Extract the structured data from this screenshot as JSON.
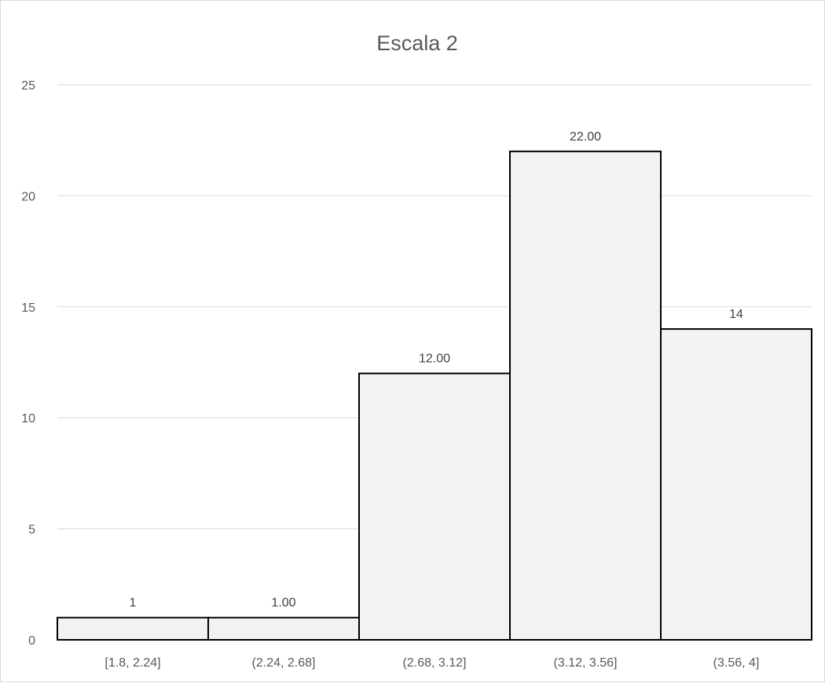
{
  "chart_data": {
    "type": "bar",
    "title": "Escala 2",
    "categories": [
      "[1.8, 2.24]",
      "(2.24, 2.68]",
      "(2.68, 3.12]",
      "(3.12, 3.56]",
      "(3.56, 4]"
    ],
    "values": [
      1,
      1,
      12,
      22,
      14
    ],
    "data_labels": [
      "1",
      "1.00",
      "12.00",
      "22.00",
      "14"
    ],
    "y_ticks": [
      "0",
      "5",
      "10",
      "15",
      "20",
      "25"
    ],
    "ylim": [
      0,
      25
    ],
    "grid": true,
    "legend": "none",
    "bar_fill": "#f2f2f2",
    "bar_stroke": "#000000",
    "grid_color": "#d9d9d9"
  }
}
